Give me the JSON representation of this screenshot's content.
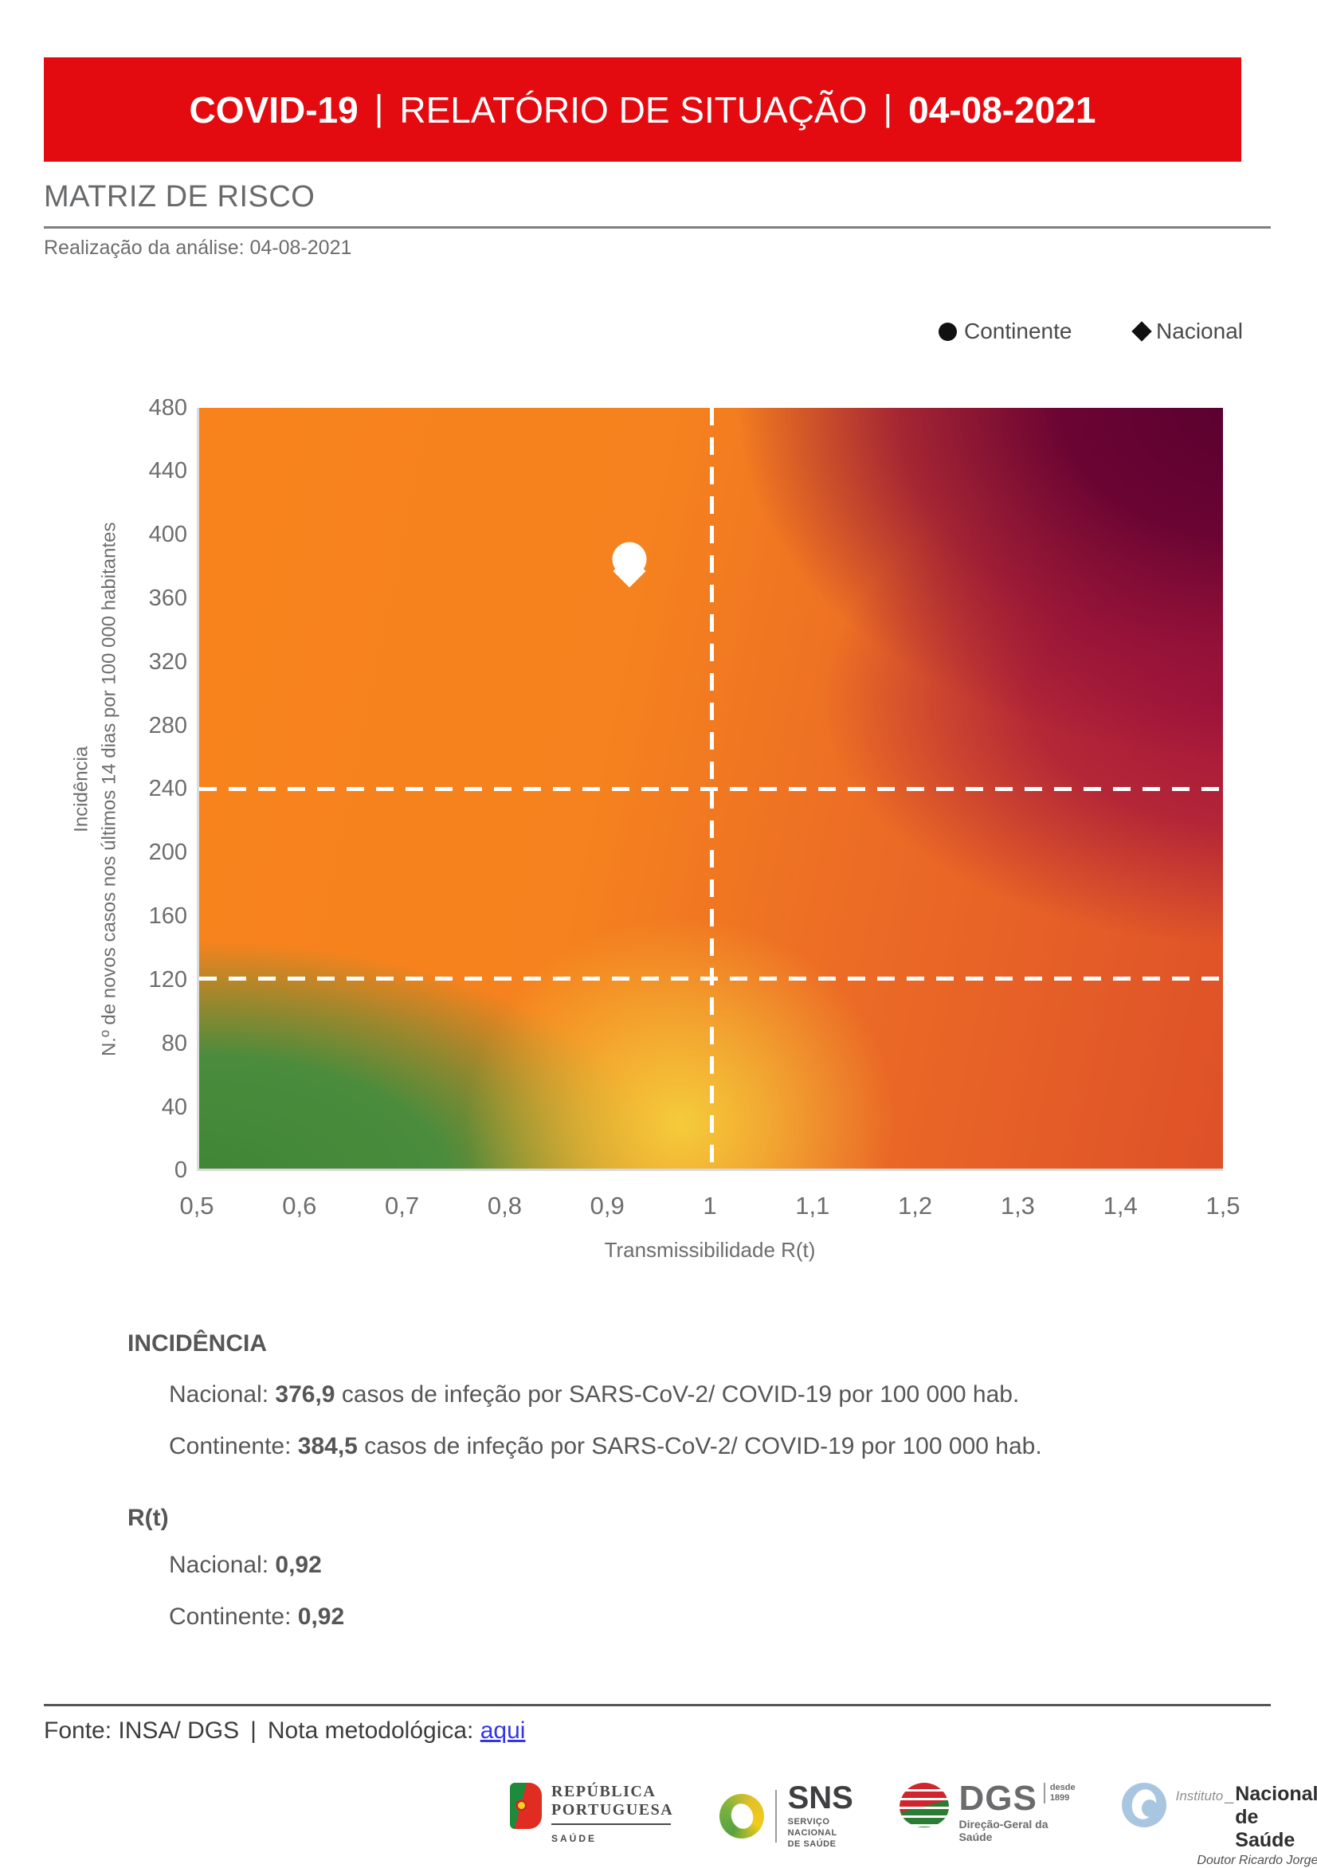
{
  "header": {
    "product": "COVID-19",
    "separator": "|",
    "report": "RELATÓRIO DE SITUAÇÃO",
    "date": "04-08-2021",
    "banner_color": "#e30b10"
  },
  "page": {
    "title": "MATRIZ DE RISCO",
    "subtitle": "Realização da análise: 04-08-2021"
  },
  "legend": {
    "continente": "Continente",
    "nacional": "Nacional",
    "marker_color": "#111111"
  },
  "chart_data": {
    "type": "heatmap",
    "title": "Matriz de risco",
    "xlabel": "Transmissibilidade R(t)",
    "ylabel_line1": "Incidência",
    "ylabel_line2": "N.º de novos casos nos últimos 14 dias por 100 000 habitantes",
    "xlim": [
      0.5,
      1.5
    ],
    "ylim": [
      0,
      480
    ],
    "x_ticks": [
      "0,5",
      "0,6",
      "0,7",
      "0,8",
      "0,9",
      "1",
      "1,1",
      "1,2",
      "1,3",
      "1,4",
      "1,5"
    ],
    "y_ticks": [
      "480",
      "440",
      "400",
      "360",
      "320",
      "280",
      "240",
      "200",
      "160",
      "120",
      "80",
      "40",
      "0"
    ],
    "threshold_lines": {
      "vertical_x": 1.0,
      "horizontal_y": [
        240,
        120
      ],
      "style": "white dashed"
    },
    "series": [
      {
        "name": "Continente",
        "marker": "circle",
        "x": 0.92,
        "y": 384.5
      },
      {
        "name": "Nacional",
        "marker": "diamond",
        "x": 0.92,
        "y": 376.9
      }
    ],
    "gradient_corner_colors": {
      "top_left": "#f8831d",
      "top_right": "#59012f",
      "mid_right": "#a3143c",
      "bottom_right": "#de5129",
      "bottom_left": "#4a8c3c",
      "transition_yellow": "#f5d03c"
    },
    "legend_position": "top-right",
    "grid": false
  },
  "incidencia": {
    "heading": "INCIDÊNCIA",
    "nacional_label": "Nacional: ",
    "nacional_value": "376,9",
    "nacional_suffix": " casos de infeção por SARS-CoV-2/ COVID-19 por 100 000 hab.",
    "continente_label": "Continente: ",
    "continente_value": "384,5",
    "continente_suffix": " casos de infeção por SARS-CoV-2/ COVID-19 por 100 000 hab."
  },
  "rt": {
    "heading": "R(t)",
    "nacional_label": "Nacional: ",
    "nacional_value": "0,92",
    "continente_label": "Continente: ",
    "continente_value": "0,92"
  },
  "footer": {
    "fonte": "Fonte: INSA/ DGS",
    "separator": "|",
    "nota": "Nota metodológica: ",
    "link": "aqui",
    "link_color": "#3434e8"
  },
  "logos": {
    "republica": {
      "line1": "REPÚBLICA",
      "line2": "PORTUGUESA",
      "tagline": "SAÚDE"
    },
    "sns": {
      "abbr": "SNS",
      "cap1": "SERVIÇO NACIONAL",
      "cap2": "DE SAÚDE"
    },
    "dgs": {
      "abbr": "DGS",
      "since1": "desde",
      "since2": "1899",
      "caption": "Direção-Geral da Saúde"
    },
    "insa": {
      "prefix": "Instituto",
      "underscore": "_",
      "name": "Nacional de Saúde",
      "caption": "Doutor Ricardo Jorge"
    }
  }
}
